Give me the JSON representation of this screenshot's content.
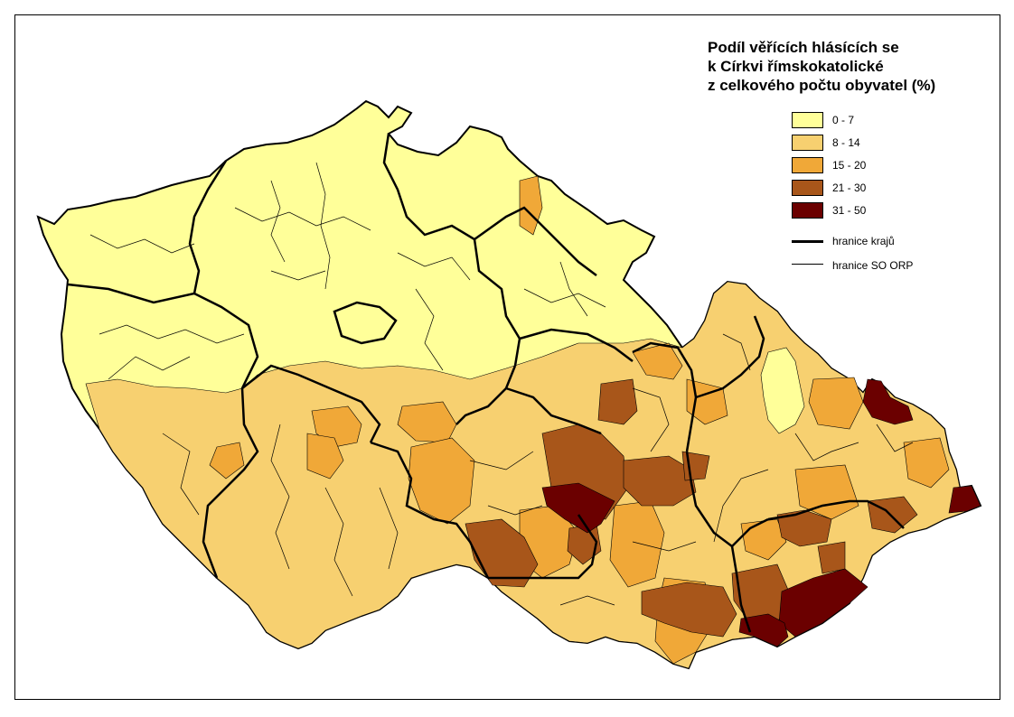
{
  "title_lines": [
    "Podíl věřících hlásících se",
    "k Církvi římskokatolické",
    "z celkového počtu obyvatel (%)"
  ],
  "legend": {
    "classes": [
      {
        "label": "0 - 7",
        "color": "#FFFF99"
      },
      {
        "label": "8 - 14",
        "color": "#F7D070"
      },
      {
        "label": "15 - 20",
        "color": "#F0A838"
      },
      {
        "label": "21 - 30",
        "color": "#A8561A"
      },
      {
        "label": "31 - 50",
        "color": "#6B0000"
      }
    ],
    "lines": [
      {
        "label": "hranice krajů",
        "style": "thick"
      },
      {
        "label": "hranice SO ORP",
        "style": "thin"
      }
    ]
  }
}
